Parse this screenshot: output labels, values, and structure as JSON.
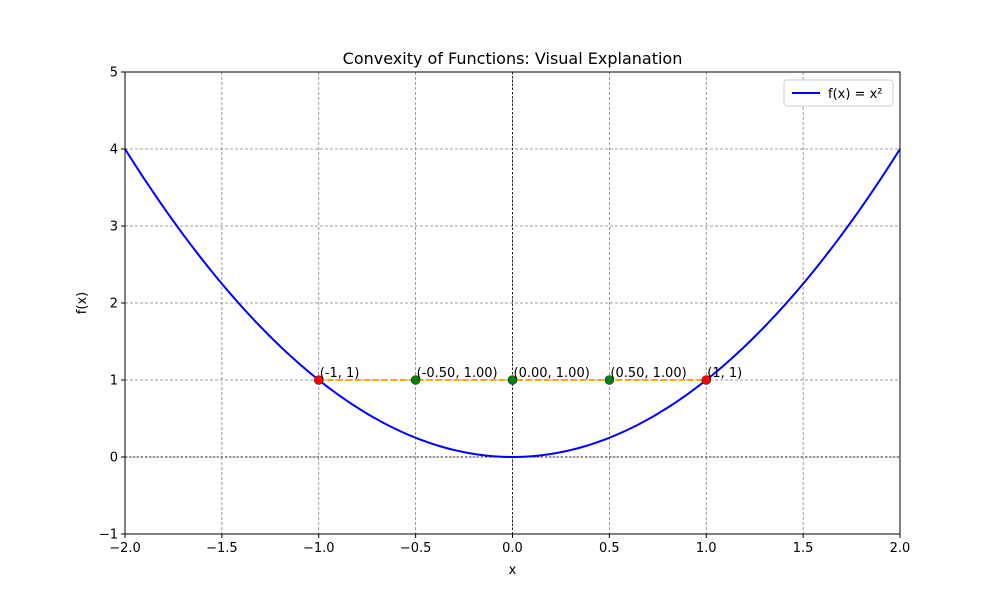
{
  "chart_data": {
    "type": "line",
    "title": "Convexity of Functions: Visual Explanation",
    "xlabel": "x",
    "ylabel": "f(x)",
    "xlim": [
      -2,
      2
    ],
    "ylim": [
      -1,
      5
    ],
    "x_ticks": [
      -2.0,
      -1.5,
      -1.0,
      -0.5,
      0.0,
      0.5,
      1.0,
      1.5,
      2.0
    ],
    "x_tick_labels": [
      "−2.0",
      "−1.5",
      "−1.0",
      "−0.5",
      "0.0",
      "0.5",
      "1.0",
      "1.5",
      "2.0"
    ],
    "y_ticks": [
      -1,
      0,
      1,
      2,
      3,
      4,
      5
    ],
    "y_tick_labels": [
      "−1",
      "0",
      "1",
      "2",
      "3",
      "4",
      "5"
    ],
    "grid": true,
    "legend_position": "top-right",
    "series": [
      {
        "name": "f(x) = x²",
        "color": "#0000ff",
        "x": [
          -2.0,
          -1.8,
          -1.6,
          -1.4,
          -1.2,
          -1.0,
          -0.8,
          -0.6,
          -0.4,
          -0.2,
          0.0,
          0.2,
          0.4,
          0.6,
          0.8,
          1.0,
          1.2,
          1.4,
          1.6,
          1.8,
          2.0
        ],
        "y": [
          4.0,
          3.24,
          2.56,
          1.96,
          1.44,
          1.0,
          0.64,
          0.36,
          0.16,
          0.04,
          0.0,
          0.04,
          0.16,
          0.36,
          0.64,
          1.0,
          1.44,
          1.96,
          2.56,
          3.24,
          4.0
        ]
      }
    ],
    "chord": {
      "color": "#ffa500",
      "style": "dashed",
      "x": [
        -1,
        1
      ],
      "y": [
        1,
        1
      ]
    },
    "endpoints": {
      "color": "#ff0000",
      "points": [
        {
          "x": -1,
          "y": 1,
          "label": "(-1, 1)"
        },
        {
          "x": 1,
          "y": 1,
          "label": "(1, 1)"
        }
      ]
    },
    "interpolated_points": {
      "color": "#008000",
      "points": [
        {
          "x": -0.5,
          "y": 1.0,
          "label": "(-0.50, 1.00)"
        },
        {
          "x": 0.0,
          "y": 1.0,
          "label": "(0.00, 1.00)"
        },
        {
          "x": 0.5,
          "y": 1.0,
          "label": "(0.50, 1.00)"
        }
      ]
    },
    "reference_lines": {
      "x": 0,
      "y": 0
    }
  }
}
